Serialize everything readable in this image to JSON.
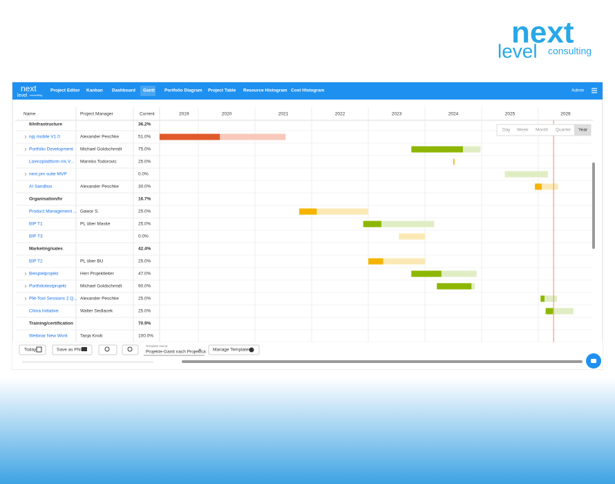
{
  "brand": {
    "word1": "next",
    "word2": "level",
    "word3": "consulting"
  },
  "nav": {
    "logo": {
      "word1": "next",
      "word2": "level",
      "word3": "consulting"
    },
    "items": [
      "Project Editor",
      "Kanban",
      "Dashboard",
      "Gantt",
      "Portfolio Diagram",
      "Project Table",
      "Resource Histogram",
      "Cost Histogram"
    ],
    "active": 3,
    "user": "Admin"
  },
  "table": {
    "columns": [
      "Name",
      "Project Manager",
      "Current"
    ],
    "rows": [
      {
        "name": "It/infrastructure",
        "manager": "",
        "current": "36.2%",
        "group": true
      },
      {
        "name": "npj mobile V1.0",
        "manager": "Alexander Peschke",
        "current": "51.0%",
        "expandable": true,
        "bar": {
          "start": 2019.3,
          "progress": 2020.38,
          "end": 2021.54,
          "color": "#e05a2b",
          "light": "#f8c9bb"
        }
      },
      {
        "name": "Portfolio Development",
        "manager": "Michael Goldschmidt",
        "current": "75.0%",
        "expandable": true,
        "bar": {
          "start": 2023.76,
          "progress": 2024.67,
          "end": 2024.98,
          "color": "#8db600",
          "light": "#e0edc4"
        }
      },
      {
        "name": "Lizenzplattform nls V...",
        "manager": "Marinko Todorovic",
        "current": "25.0%",
        "bar": {
          "start": 2024.5,
          "progress": 2024.52,
          "end": 2024.52,
          "color": "#f5b400",
          "light": "#fbe9b5"
        }
      },
      {
        "name": "next pm suite MVP",
        "manager": "",
        "current": "0.0%",
        "expandable": true,
        "bar": {
          "start": 2025.41,
          "progress": 2025.41,
          "end": 2026.17,
          "color": "#8db600",
          "light": "#e0edc4"
        }
      },
      {
        "name": "AI Sandbox",
        "manager": "Alexander Peschke",
        "current": "30.0%",
        "bar": {
          "start": 2025.94,
          "progress": 2026.06,
          "end": 2026.35,
          "color": "#f5b400",
          "light": "#fbe9b5"
        }
      },
      {
        "name": "Organisation/hr",
        "manager": "",
        "current": "16.7%",
        "group": true
      },
      {
        "name": "Product Management ...",
        "manager": "Gawor S.",
        "current": "25.0%",
        "bar": {
          "start": 2021.78,
          "progress": 2022.09,
          "end": 2023.0,
          "color": "#f5b400",
          "light": "#fbe9b5"
        }
      },
      {
        "name": "BIP T1",
        "manager": "PL über Maske",
        "current": "25.0%",
        "bar": {
          "start": 2022.91,
          "progress": 2023.23,
          "end": 2024.16,
          "color": "#8db600",
          "light": "#e0edc4"
        }
      },
      {
        "name": "BIP T3",
        "manager": "",
        "current": "0.0%",
        "bar": {
          "start": 2023.54,
          "progress": 2023.54,
          "end": 2024.0,
          "color": "#f5b400",
          "light": "#fbe9b5"
        }
      },
      {
        "name": "Marketing/sales",
        "manager": "",
        "current": "42.4%",
        "group": true
      },
      {
        "name": "BIP T2",
        "manager": "PL über BU",
        "current": "25.0%",
        "bar": {
          "start": 2023.0,
          "progress": 2023.26,
          "end": 2024.0,
          "color": "#f5b400",
          "light": "#fbe9b5"
        }
      },
      {
        "name": "Beispielprojekt",
        "manager": "Herr Projektleiter",
        "current": "47.0%",
        "expandable": true,
        "bar": {
          "start": 2023.76,
          "progress": 2024.29,
          "end": 2024.91,
          "color": "#8db600",
          "light": "#e0edc4"
        }
      },
      {
        "name": "Portfoliotestprojekt",
        "manager": "Michael Goldschmidt",
        "current": "90.0%",
        "expandable": true,
        "bar": {
          "start": 2024.21,
          "progress": 2024.82,
          "end": 2024.88,
          "color": "#8db600",
          "light": "#e0edc4"
        }
      },
      {
        "name": "PM-Tool Sessions 2 Q...",
        "manager": "Alexander Peschke",
        "current": "25.0%",
        "expandable": true,
        "bar": {
          "start": 2026.04,
          "progress": 2026.11,
          "end": 2026.33,
          "color": "#8db600",
          "light": "#e0edc4"
        }
      },
      {
        "name": "China Initiative",
        "manager": "Walter Sedlacek",
        "current": "25.0%",
        "bar": {
          "start": 2026.13,
          "progress": 2026.26,
          "end": 2026.62,
          "color": "#8db600",
          "light": "#e0edc4"
        }
      },
      {
        "name": "Training/certification",
        "manager": "",
        "current": "70.9%",
        "group": true
      },
      {
        "name": "Webinar New Work",
        "manager": "Tanja Knob",
        "current": "100.0%"
      }
    ]
  },
  "timeline": {
    "years": [
      2019,
      2020,
      2021,
      2022,
      2023,
      2024,
      2025,
      2026
    ],
    "today": 2026.27
  },
  "views": {
    "items": [
      "Day",
      "Week",
      "Month",
      "Quarter",
      "Year"
    ],
    "active": 4
  },
  "toolbar": {
    "today": "Today",
    "save": "Save as PNG",
    "template_label": "Template Name",
    "template_value": "Projekte-Gantt nach Projektca",
    "clear": "×",
    "manage": "Manage Templates"
  }
}
